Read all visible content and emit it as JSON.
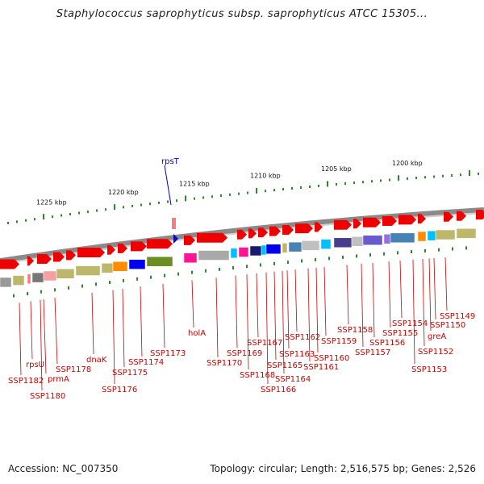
{
  "title": "Staphylococcus saprophyticus subsp. saprophyticus ATCC 15305...",
  "footer": {
    "accession": "Accession: NC_007350",
    "stats": "Topology: circular; Length: 2,516,575 bp; Genes: 2,526"
  },
  "colors": {
    "gene_strand": "#ee0000",
    "label_red": "#cc0000",
    "label_blue": "#0000cc",
    "backbone": "#888888",
    "ticks": "#2a8a2a"
  },
  "kbp_ticks": [
    "1225 kbp",
    "1220 kbp",
    "1215 kbp",
    "1210 kbp",
    "1205 kbp",
    "1200 kbp"
  ],
  "highlight_gene": "rpsT",
  "gene_labels": [
    "SSP1182",
    "rpsU",
    "SSP1180",
    "prmA",
    "SSP1178",
    "dnaK",
    "SSP1176",
    "SSP1175",
    "SSP1174",
    "SSP1173",
    "holA",
    "SSP1170",
    "SSP1169",
    "SSP1168",
    "SSP1167",
    "SSP1166",
    "SSP1165",
    "SSP1164",
    "SSP1163",
    "SSP1162",
    "SSP1161",
    "SSP1160",
    "SSP1159",
    "SSP1158",
    "SSP1157",
    "SSP1156",
    "SSP1155",
    "SSP1154",
    "SSP1153",
    "SSP1152",
    "greA",
    "SSP1150",
    "SSP1149"
  ]
}
